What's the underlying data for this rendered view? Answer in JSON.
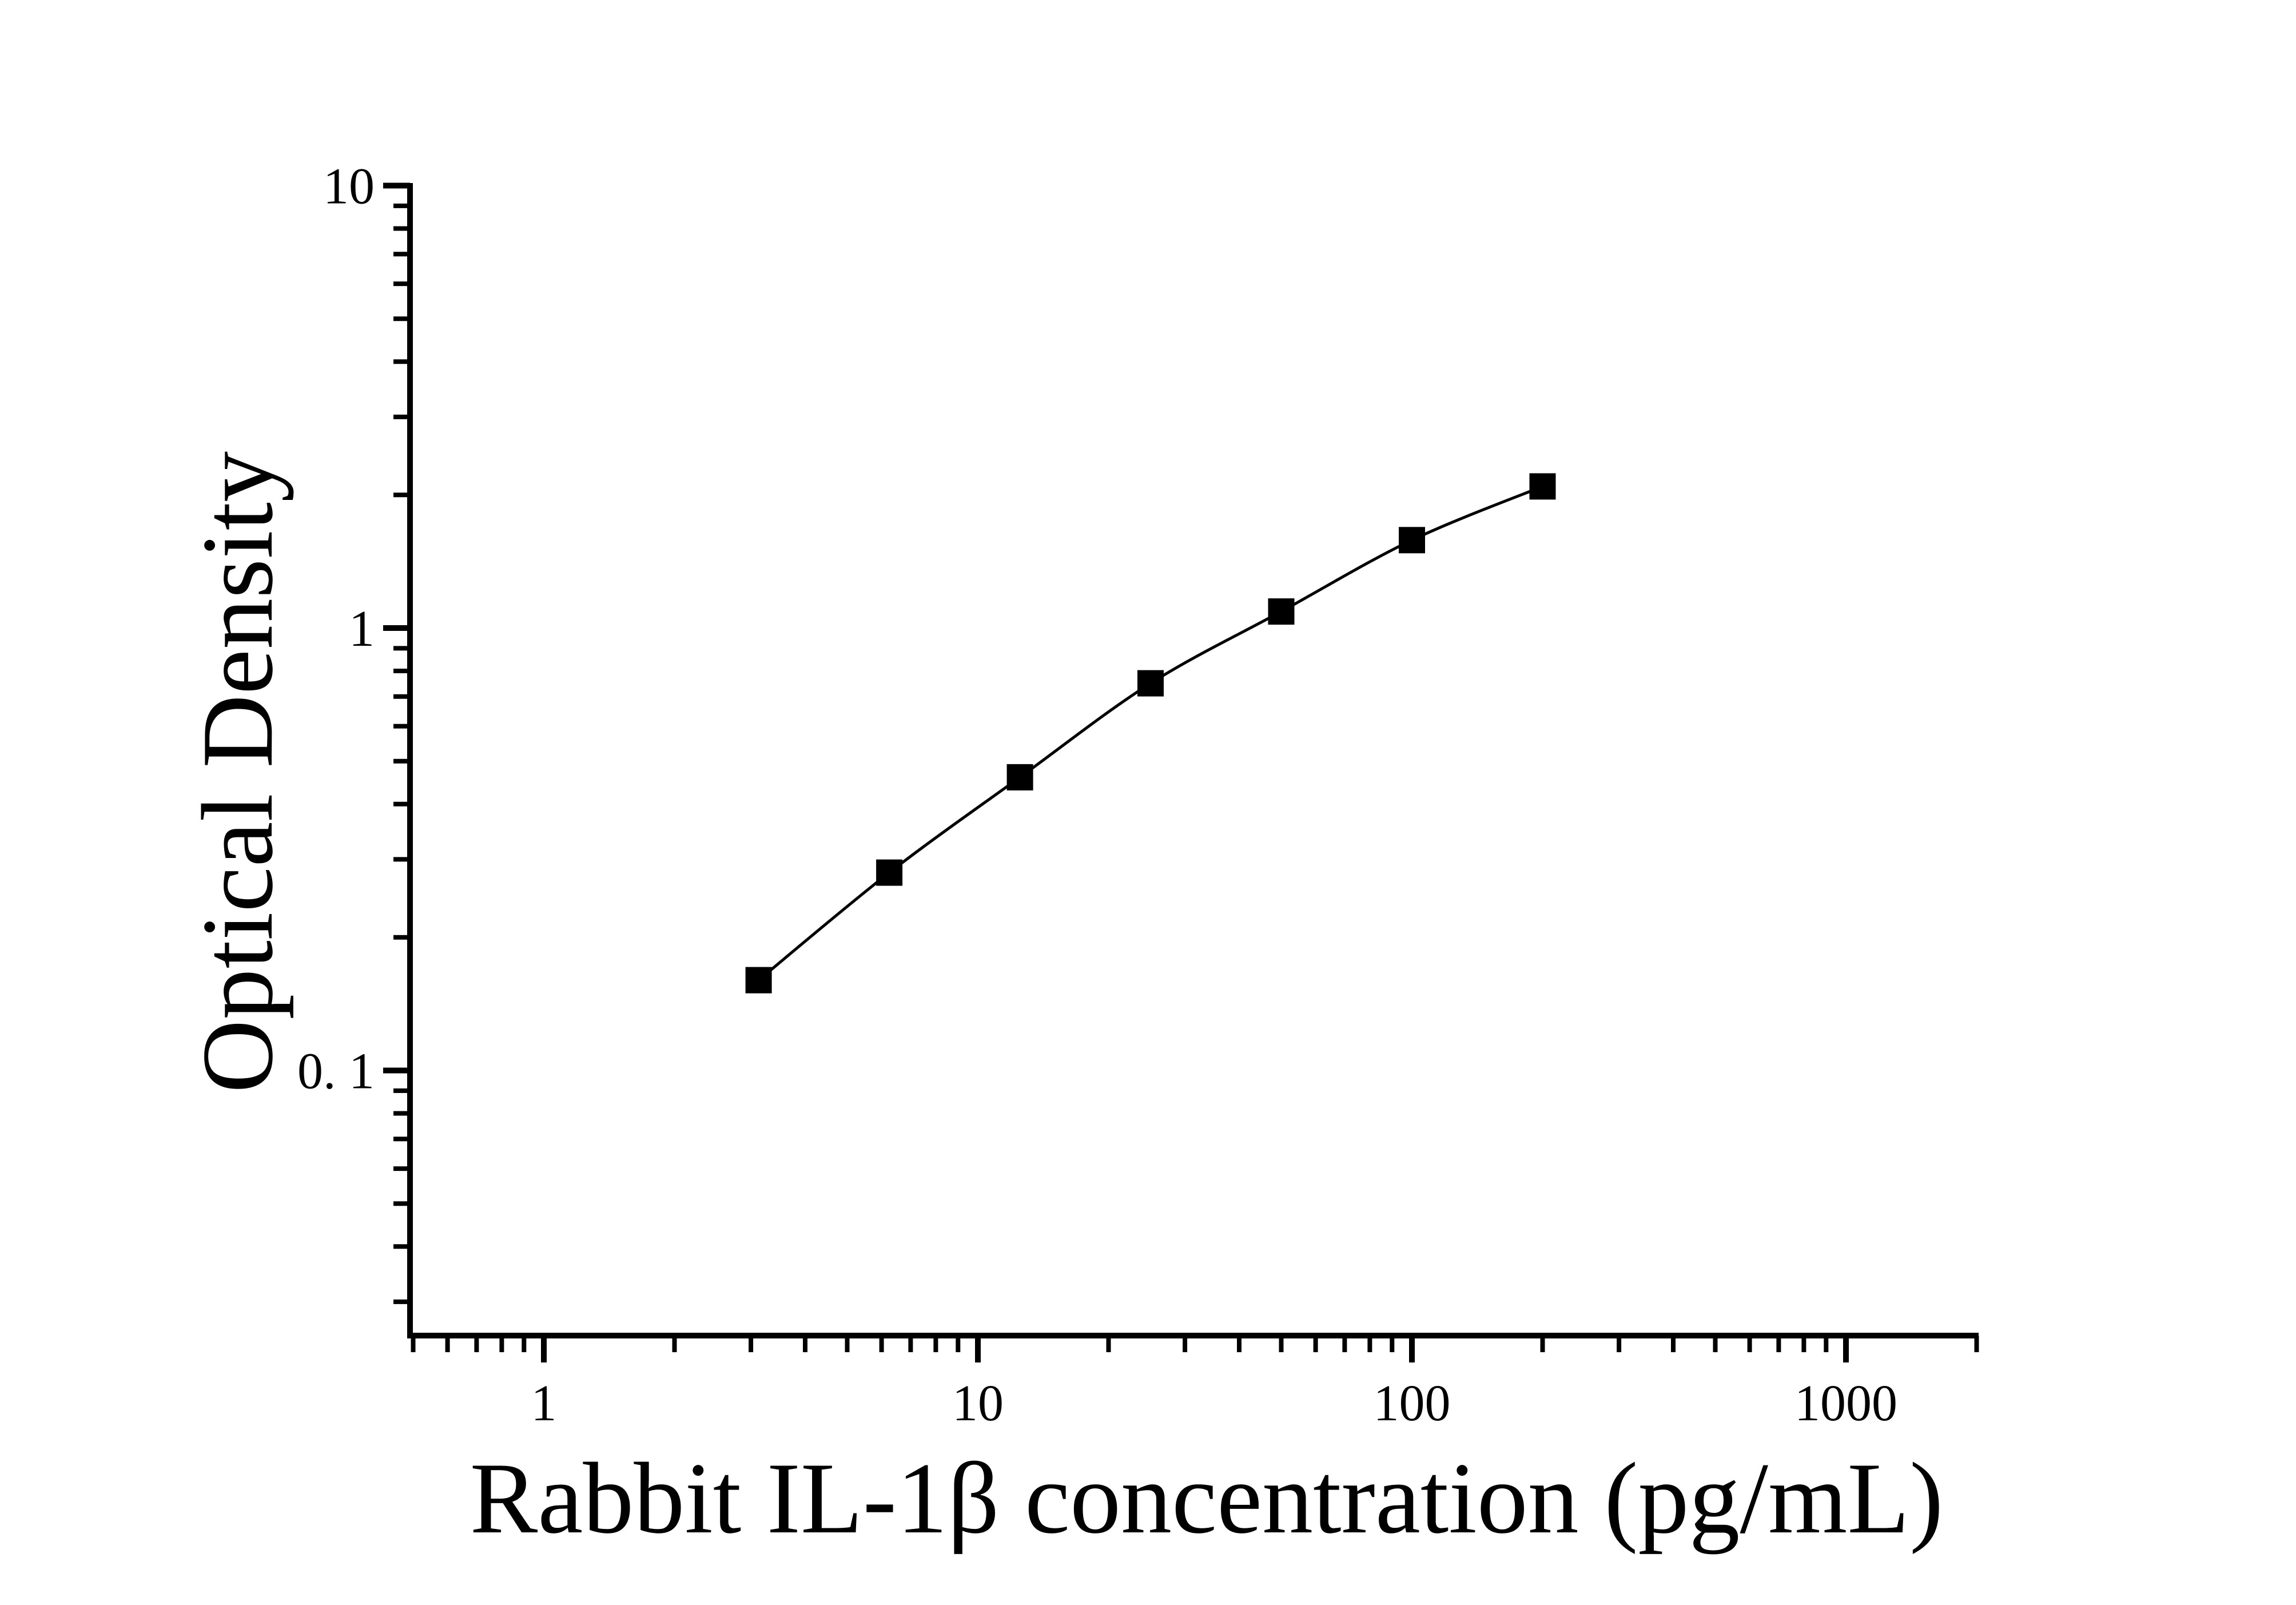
{
  "page": {
    "background_color": "#ffffff",
    "foreground_color": "#000000"
  },
  "chart_data": {
    "type": "line",
    "title": "",
    "xlabel": "Rabbit IL-1β concentration (pg/mL)",
    "ylabel": "Optical Density",
    "x_scale": "log",
    "y_scale": "log",
    "xlim": [
      0.5,
      2000
    ],
    "ylim": [
      0.025,
      10
    ],
    "grid": false,
    "legend": null,
    "axes_style": "left-bottom-only, ticks outward, minor log ticks",
    "x_ticks": {
      "values": [
        1,
        10,
        100,
        1000
      ],
      "labels": [
        "1",
        "10",
        "100",
        "1000"
      ]
    },
    "y_ticks": {
      "values": [
        0.1,
        1,
        10
      ],
      "labels": [
        "0. 1",
        "1",
        "10"
      ]
    },
    "series": [
      {
        "name": "standard-curve",
        "marker": "filled-square",
        "marker_color": "#000000",
        "line_color": "#000000",
        "x": [
          3.125,
          6.25,
          12.5,
          25,
          50,
          100,
          200
        ],
        "y": [
          0.16,
          0.28,
          0.46,
          0.75,
          1.09,
          1.58,
          2.09
        ]
      }
    ]
  }
}
